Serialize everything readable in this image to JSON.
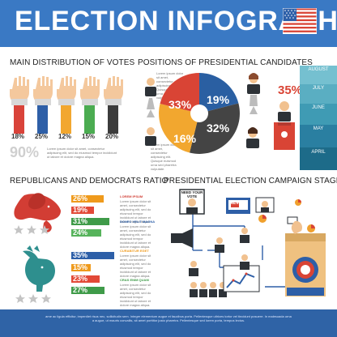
{
  "header": {
    "title": "ELECTION INFOGRAPHICS",
    "colors": {
      "header_blue": "#3a79c4",
      "footer_blue": "#2f63a6",
      "red": "#cf3b34",
      "orange": "#f0a02d",
      "green": "#45b04f",
      "teal": "#2e8f8e",
      "dark": "#424242"
    }
  },
  "sections": {
    "main_distribution": "MAIN DISTRIBUTION OF VOTES",
    "positions": "POSITIONS OF PRESIDENTIAL CANDIDATES",
    "ratio": "REPUBLICANS AND DEMOCRATS RATIO",
    "stages": "PRESIDENTIAL ELECTION CAMPAIGN STAGES"
  },
  "votes": {
    "labels": [
      "18%",
      "25%",
      "12%",
      "15%",
      "20%"
    ],
    "total": "90%",
    "caption": "Lorem ipsum dolor sit amet, consectetur adipiscing elit, sed do eiusmod tempor incididunt ut labore et dolore magna aliqua."
  },
  "pie": {
    "values": [
      {
        "label": "33%",
        "color": "#d94435"
      },
      {
        "label": "19%",
        "color": "#2a5fa2"
      },
      {
        "label": "32%",
        "color": "#444444"
      },
      {
        "label": "16%",
        "color": "#f2a72f"
      }
    ],
    "side_text": "Lorem ipsum dolor sit amet, consectetur adipiscing elit. Quisque euismod urna sed pharetra vulputate."
  },
  "candidate_panel": {
    "percent": "35%",
    "months": [
      "AUGUST",
      "JULY",
      "JUNE",
      "MAY",
      "APRIL"
    ]
  },
  "ratio": {
    "republicans": [
      {
        "value": "26%",
        "color": "#ef9a1c"
      },
      {
        "value": "19%",
        "color": "#e24937"
      },
      {
        "value": "31%",
        "color": "#3f9b49"
      },
      {
        "value": "24%",
        "color": "#56b35b"
      }
    ],
    "democrats": [
      {
        "value": "35%",
        "color": "#2d5fa8"
      },
      {
        "value": "15%",
        "color": "#ef9a1c"
      },
      {
        "value": "23%",
        "color": "#e24937"
      },
      {
        "value": "27%",
        "color": "#3f9b49"
      }
    ],
    "captions": [
      "LOREM IPSUM",
      "DONEC VELIT MAGNA",
      "CURABITUR EGET",
      "CRAS ENIM QUAM"
    ]
  },
  "stages": {
    "need_vote": "NEED YOUR VOTE",
    "news": "NEWS"
  },
  "footer": {
    "text": "ame ac ligula efficitur, imperdiet risus nec, sollicitudin sem. Integer elementum augue et faucibus porta. Pellentesque ultrices tortor vel tincidunt posuere. In malesuada urna a augue, ut mauris convallis, sit amet porttitor justo pharetra. Pellentesque sed lorem porta, tempus lectus."
  }
}
